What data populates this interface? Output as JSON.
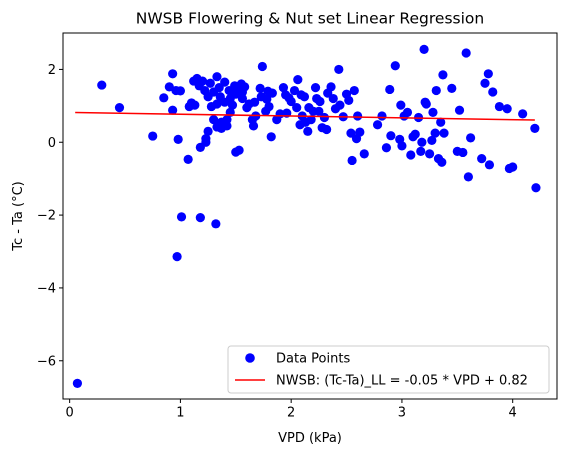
{
  "chart_data": {
    "type": "scatter",
    "title": "NWSB Flowering & Nut set Linear Regression",
    "xlabel": "VPD (kPa)",
    "ylabel": "Tc - Ta (°C)",
    "xlim": [
      -0.06,
      4.4
    ],
    "ylim": [
      -7.05,
      3.0
    ],
    "xticks": [
      0,
      1,
      2,
      3,
      4
    ],
    "yticks": [
      -6,
      -4,
      -2,
      0,
      2
    ],
    "grid": false,
    "legend_position": "lower-right",
    "colors": {
      "points": "#0000ff",
      "line": "#ff0000"
    },
    "series": [
      {
        "name": "Data Points",
        "kind": "scatter",
        "points": [
          [
            0.07,
            -6.62
          ],
          [
            0.29,
            1.57
          ],
          [
            0.45,
            0.95
          ],
          [
            0.75,
            0.17
          ],
          [
            0.85,
            1.22
          ],
          [
            0.9,
            1.52
          ],
          [
            0.93,
            1.88
          ],
          [
            0.93,
            0.88
          ],
          [
            0.96,
            1.42
          ],
          [
            0.97,
            -3.14
          ],
          [
            0.98,
            0.08
          ],
          [
            1.0,
            1.41
          ],
          [
            1.01,
            -2.05
          ],
          [
            1.07,
            -0.47
          ],
          [
            1.08,
            0.98
          ],
          [
            1.1,
            1.08
          ],
          [
            1.12,
            1.68
          ],
          [
            1.13,
            1.02
          ],
          [
            1.15,
            1.75
          ],
          [
            1.17,
            1.55
          ],
          [
            1.18,
            -2.07
          ],
          [
            1.18,
            -0.14
          ],
          [
            1.2,
            1.68
          ],
          [
            1.22,
            1.42
          ],
          [
            1.23,
            0.0
          ],
          [
            1.23,
            0.1
          ],
          [
            1.25,
            1.25
          ],
          [
            1.25,
            0.3
          ],
          [
            1.27,
            1.62
          ],
          [
            1.28,
            0.98
          ],
          [
            1.3,
            1.38
          ],
          [
            1.3,
            0.62
          ],
          [
            1.32,
            -2.24
          ],
          [
            1.33,
            1.8
          ],
          [
            1.33,
            1.05
          ],
          [
            1.33,
            0.42
          ],
          [
            1.35,
            1.5
          ],
          [
            1.36,
            1.25
          ],
          [
            1.37,
            0.55
          ],
          [
            1.37,
            0.38
          ],
          [
            1.4,
            1.65
          ],
          [
            1.4,
            1.1
          ],
          [
            1.42,
            0.62
          ],
          [
            1.42,
            0.45
          ],
          [
            1.44,
            1.42
          ],
          [
            1.45,
            1.2
          ],
          [
            1.45,
            0.82
          ],
          [
            1.47,
            1.02
          ],
          [
            1.49,
            1.55
          ],
          [
            1.5,
            1.32
          ],
          [
            1.5,
            -0.27
          ],
          [
            1.52,
            1.45
          ],
          [
            1.53,
            -0.22
          ],
          [
            1.55,
            1.6
          ],
          [
            1.56,
            1.38
          ],
          [
            1.56,
            1.2
          ],
          [
            1.58,
            1.52
          ],
          [
            1.6,
            0.95
          ],
          [
            1.62,
            1.05
          ],
          [
            1.65,
            0.62
          ],
          [
            1.66,
            0.45
          ],
          [
            1.67,
            1.1
          ],
          [
            1.68,
            0.72
          ],
          [
            1.72,
            1.48
          ],
          [
            1.73,
            1.25
          ],
          [
            1.74,
            2.08
          ],
          [
            1.77,
            0.85
          ],
          [
            1.78,
            1.18
          ],
          [
            1.79,
            1.4
          ],
          [
            1.8,
            0.98
          ],
          [
            1.82,
            0.15
          ],
          [
            1.83,
            1.35
          ],
          [
            1.87,
            0.62
          ],
          [
            1.9,
            0.78
          ],
          [
            1.93,
            1.5
          ],
          [
            1.95,
            1.3
          ],
          [
            1.96,
            0.8
          ],
          [
            1.98,
            1.22
          ],
          [
            2.0,
            1.12
          ],
          [
            2.03,
            1.42
          ],
          [
            2.05,
            0.95
          ],
          [
            2.06,
            1.72
          ],
          [
            2.08,
            0.48
          ],
          [
            2.09,
            1.3
          ],
          [
            2.1,
            0.72
          ],
          [
            2.12,
            1.25
          ],
          [
            2.13,
            0.55
          ],
          [
            2.15,
            0.3
          ],
          [
            2.16,
            0.95
          ],
          [
            2.18,
            0.62
          ],
          [
            2.2,
            0.85
          ],
          [
            2.22,
            1.5
          ],
          [
            2.23,
            1.2
          ],
          [
            2.25,
            0.85
          ],
          [
            2.26,
            1.12
          ],
          [
            2.28,
            0.4
          ],
          [
            2.3,
            0.68
          ],
          [
            2.32,
            0.35
          ],
          [
            2.33,
            1.35
          ],
          [
            2.36,
            1.52
          ],
          [
            2.38,
            1.2
          ],
          [
            2.4,
            0.92
          ],
          [
            2.43,
            2.0
          ],
          [
            2.44,
            1.02
          ],
          [
            2.47,
            0.7
          ],
          [
            2.5,
            1.32
          ],
          [
            2.52,
            1.15
          ],
          [
            2.54,
            0.25
          ],
          [
            2.55,
            -0.5
          ],
          [
            2.57,
            1.42
          ],
          [
            2.59,
            0.1
          ],
          [
            2.6,
            0.72
          ],
          [
            2.62,
            0.28
          ],
          [
            2.66,
            -0.32
          ],
          [
            2.78,
            0.48
          ],
          [
            2.82,
            0.72
          ],
          [
            2.86,
            -0.15
          ],
          [
            2.89,
            1.45
          ],
          [
            2.9,
            0.18
          ],
          [
            2.94,
            2.1
          ],
          [
            2.98,
            0.08
          ],
          [
            2.99,
            1.02
          ],
          [
            3.0,
            -0.1
          ],
          [
            3.02,
            0.72
          ],
          [
            3.05,
            0.82
          ],
          [
            3.08,
            -0.35
          ],
          [
            3.1,
            0.15
          ],
          [
            3.12,
            0.22
          ],
          [
            3.15,
            0.68
          ],
          [
            3.17,
            -0.25
          ],
          [
            3.18,
            0.0
          ],
          [
            3.2,
            2.55
          ],
          [
            3.21,
            1.1
          ],
          [
            3.22,
            1.05
          ],
          [
            3.25,
            -0.32
          ],
          [
            3.27,
            0.05
          ],
          [
            3.28,
            0.82
          ],
          [
            3.3,
            0.25
          ],
          [
            3.31,
            1.42
          ],
          [
            3.33,
            -0.45
          ],
          [
            3.35,
            0.55
          ],
          [
            3.36,
            -0.55
          ],
          [
            3.37,
            1.85
          ],
          [
            3.38,
            0.25
          ],
          [
            3.45,
            1.48
          ],
          [
            3.5,
            -0.25
          ],
          [
            3.52,
            0.88
          ],
          [
            3.55,
            -0.28
          ],
          [
            3.58,
            2.45
          ],
          [
            3.6,
            -0.95
          ],
          [
            3.62,
            0.12
          ],
          [
            3.72,
            -0.45
          ],
          [
            3.75,
            1.62
          ],
          [
            3.78,
            1.88
          ],
          [
            3.79,
            -0.62
          ],
          [
            3.82,
            1.38
          ],
          [
            3.88,
            0.98
          ],
          [
            3.95,
            0.92
          ],
          [
            3.97,
            -0.72
          ],
          [
            4.0,
            -0.68
          ],
          [
            4.09,
            0.78
          ],
          [
            4.2,
            0.38
          ],
          [
            4.21,
            -1.25
          ]
        ]
      },
      {
        "name": "NWSB: (Tc-Ta)_LL = -0.05 * VPD + 0.82",
        "kind": "line",
        "slope": -0.05,
        "intercept": 0.82,
        "x_range": [
          0.05,
          4.2
        ]
      }
    ]
  }
}
